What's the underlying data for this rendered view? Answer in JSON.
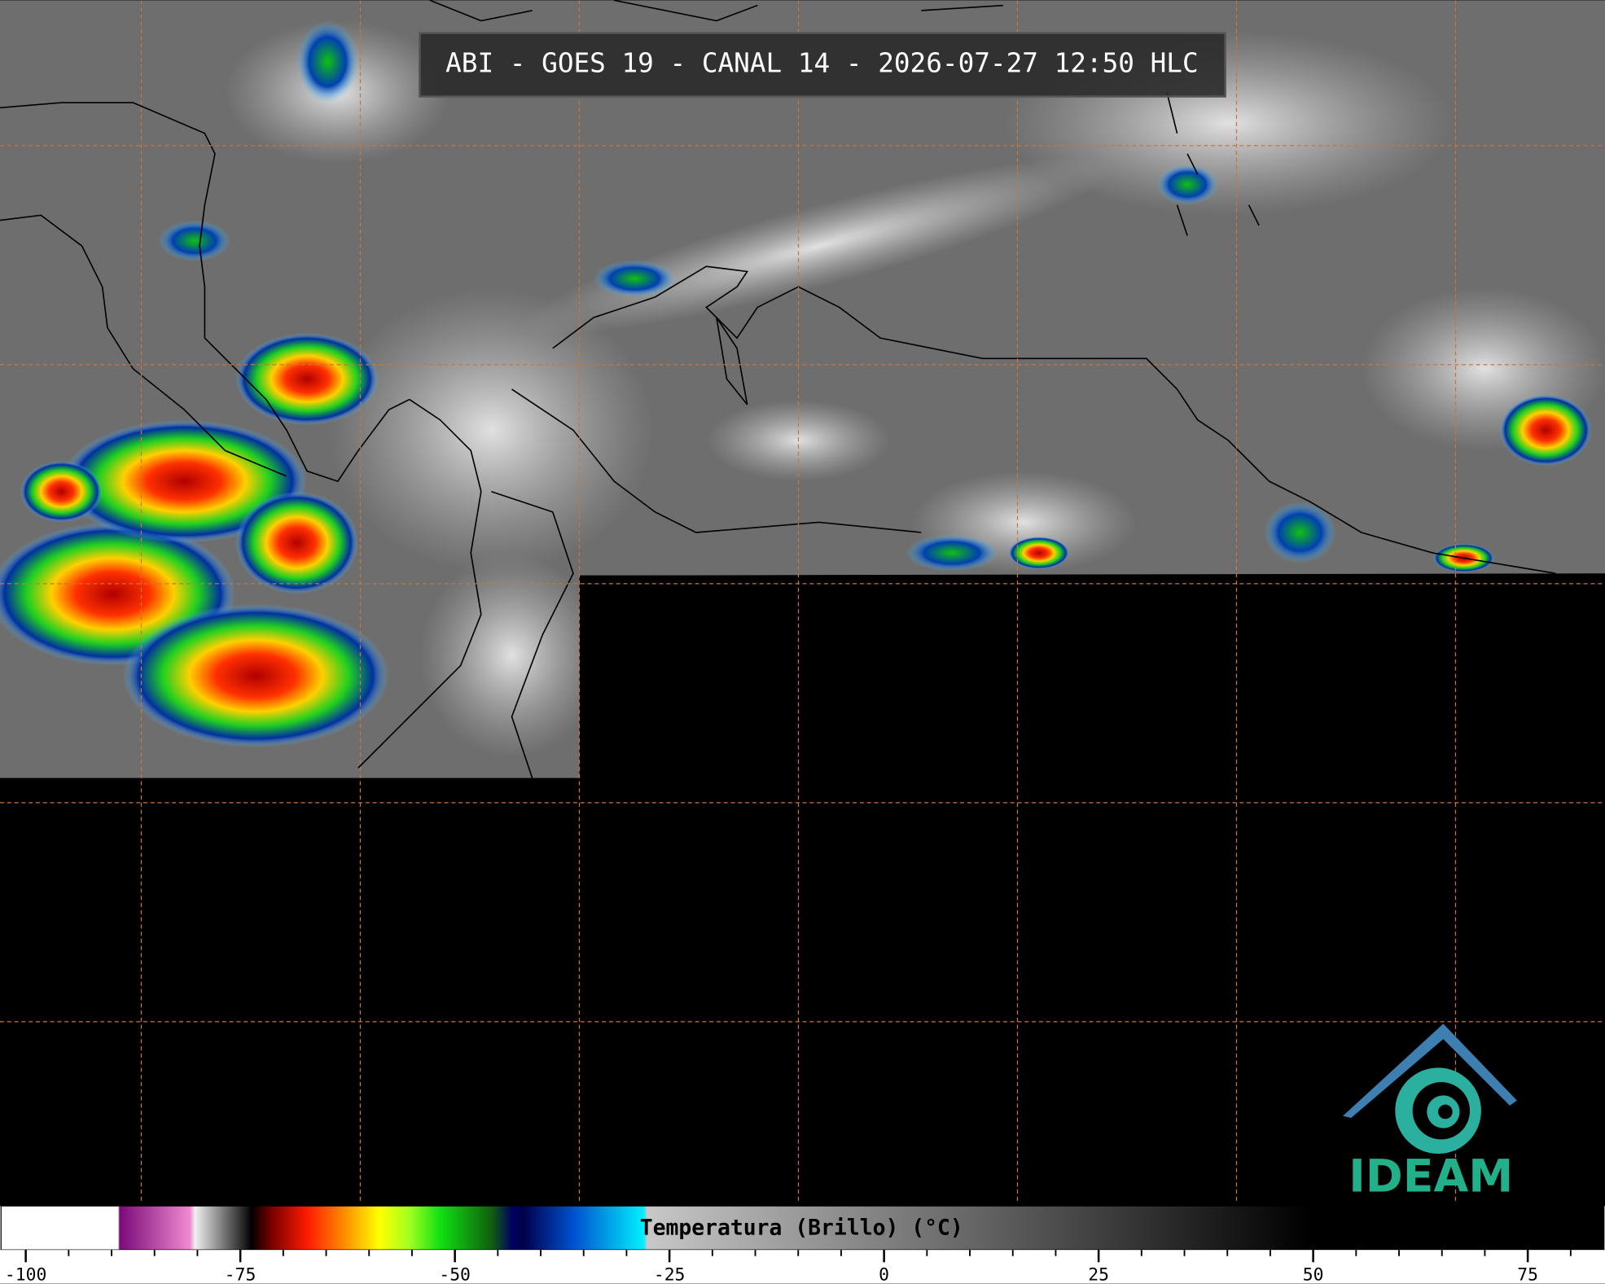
{
  "title": "ABI - GOES 19 - CANAL 14 - 2026-07-27 12:50 HLC",
  "colorbar": {
    "label": "Temperatura (Brillo) (°C)",
    "lim": [
      -103,
      84
    ],
    "ticks": [
      -100,
      -75,
      -50,
      -25,
      0,
      25,
      50,
      75
    ]
  },
  "logo": {
    "text": "IDEAM"
  }
}
